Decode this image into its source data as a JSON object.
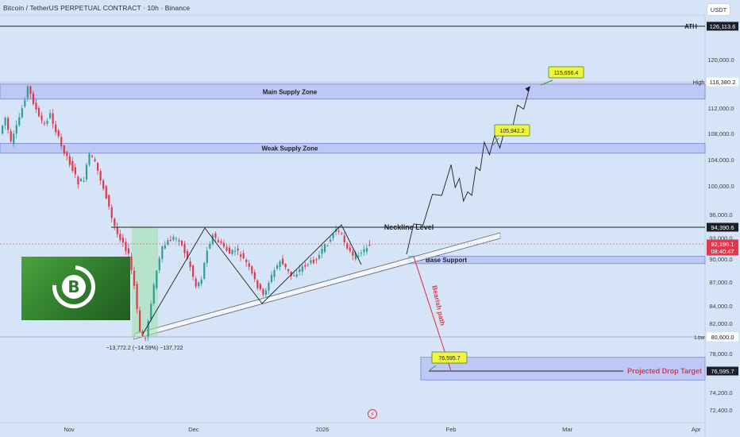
{
  "header": {
    "title": "Bitcoin / TetherUS PERPETUAL CONTRACT · 10h · Binance",
    "currency": "USDT"
  },
  "colors": {
    "background": "#d6e4f7",
    "zone_fill": "#b7c2f2",
    "zone_border": "#7c87d8",
    "candle_up": "#2f9e93",
    "candle_down": "#e0394d",
    "label_yellow": "#f0f53f",
    "bearish_red": "#e0394d",
    "line_black": "#1c1f27",
    "label_dark": "#1c1f27"
  },
  "icons": {
    "logo": "bitcoin-logo-icon",
    "flash": "flash-icon"
  },
  "chart_data": {
    "type": "candlestick",
    "x_ticks": [
      "Nov",
      "Dec",
      "2026",
      "Feb",
      "Mar",
      "Apr"
    ],
    "y_ticks": [
      "120,000.0",
      "112,000.0",
      "108,000.0",
      "104,000.0",
      "100,000.0",
      "96,000.0",
      "93,000.0",
      "90,000.0",
      "87,000.0",
      "84,000.0",
      "82,000.0",
      "78,000.0",
      "74,200.0",
      "72,400.0"
    ],
    "ylim_approx": [
      71500,
      126500
    ],
    "price_series_approx": [
      108000,
      110500,
      106500,
      109000,
      112000,
      115500,
      113000,
      110500,
      109500,
      111000,
      108500,
      106000,
      104500,
      102500,
      100500,
      101000,
      104800,
      103500,
      101000,
      98500,
      95500,
      93500,
      92500,
      90500,
      86500,
      81000,
      80300,
      84500,
      88500,
      91500,
      92500,
      93000,
      92800,
      91000,
      89000,
      86500,
      87500,
      91500,
      93300,
      92500,
      91800,
      90800,
      91300,
      90500,
      89500,
      88000,
      86500,
      85300,
      87000,
      88500,
      89800,
      88800,
      87800,
      88200,
      89000,
      89400,
      89800,
      90500,
      91800,
      92800,
      94200,
      93300,
      91800,
      90300,
      90800,
      91300,
      92196.1
    ],
    "zones": [
      {
        "name": "Main Supply Zone",
        "low": 113500,
        "high": 116000
      },
      {
        "name": "Weak Supply Zone",
        "low": 105000,
        "high": 106500
      },
      {
        "name": "Base Support",
        "low": 89400,
        "high": 90400
      },
      {
        "name": "Projected Drop Target zone",
        "low": 75600,
        "high": 77700
      }
    ],
    "lines": {
      "ath": {
        "label": "ATH",
        "value": "126,113.6"
      },
      "high": {
        "label": "High",
        "value": "116,380.2"
      },
      "neckline": {
        "label": "Neckline Level",
        "value": "94,390.6"
      },
      "low": {
        "label": "Low",
        "value": "80,600.0"
      },
      "target": {
        "label": "Projected Drop Target",
        "value": "76,595.7"
      }
    },
    "current_price": {
      "value": "92,196.1",
      "countdown": "08:40:47"
    },
    "bullish_path_points": [
      [
        "2026-01-23",
        94200
      ],
      [
        "2026-02-01",
        102500
      ],
      [
        "2026-02-05",
        98500
      ],
      [
        "2026-02-09",
        105942.2
      ],
      [
        "2026-02-14",
        108000
      ],
      [
        "2026-02-20",
        115656.4
      ]
    ],
    "bearish_path_points": [
      [
        "2026-01-23",
        91500
      ],
      [
        "2026-02-01",
        76595.7
      ]
    ],
    "target_labels": [
      "115,656.4",
      "105,942.2",
      "76,595.7"
    ],
    "annotations": {
      "bearish_path": "Bearish path",
      "measure": "−13,772.2 (−14.59%) −137,722"
    }
  }
}
